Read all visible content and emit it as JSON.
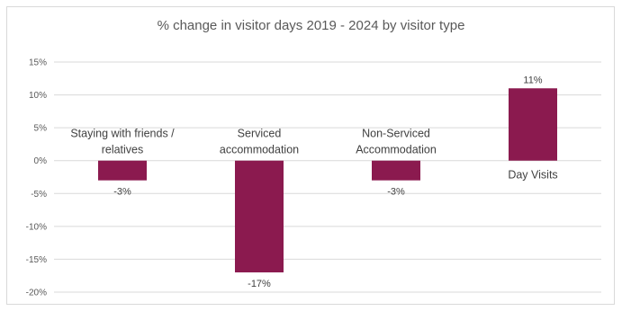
{
  "chart_data": {
    "type": "bar",
    "title": "% change in visitor days 2019 - 2024 by visitor type",
    "categories": [
      [
        "Staying with friends /",
        "relatives"
      ],
      [
        "Serviced",
        "accommodation"
      ],
      [
        "Non-Serviced",
        "Accommodation"
      ],
      [
        "Day Visits"
      ]
    ],
    "values": [
      -3,
      -17,
      -3,
      11
    ],
    "data_labels": [
      "-3%",
      "-17%",
      "-3%",
      "11%"
    ],
    "ylim": [
      -20,
      15
    ],
    "yticks": [
      15,
      10,
      5,
      0,
      -5,
      -10,
      -15,
      -20
    ],
    "ytick_labels": [
      "15%",
      "10%",
      "5%",
      "0%",
      "-5%",
      "-10%",
      "-15%",
      "-20%"
    ],
    "grid": true,
    "legend": "none",
    "colors": {
      "bar": "#8b1a4f",
      "grid": "#d9d9d9",
      "text": "#595959"
    }
  }
}
